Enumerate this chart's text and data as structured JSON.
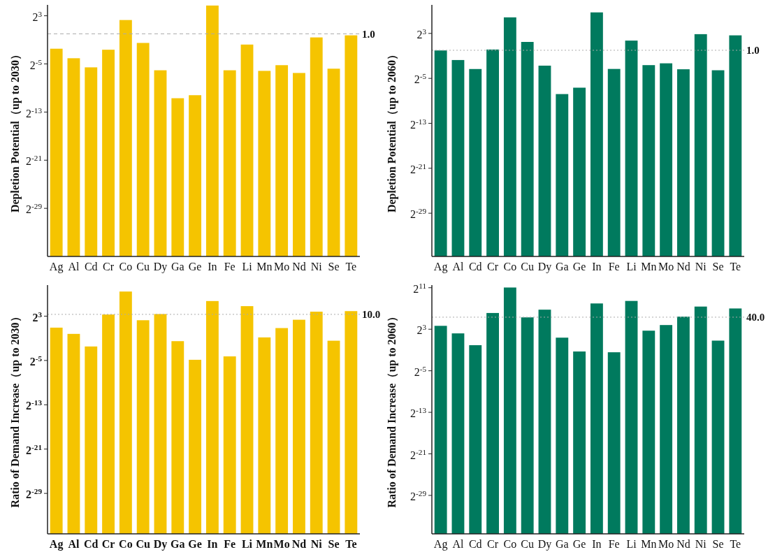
{
  "chart_data": [
    {
      "type": "bar",
      "ylabel": "Depletion Potential（up to 2030）",
      "log": true,
      "grid": false,
      "categories": [
        "Ag",
        "Al",
        "Cd",
        "Cr",
        "Co",
        "Cu",
        "Dy",
        "Ga",
        "Ge",
        "In",
        "Fe",
        "Li",
        "Mn",
        "Mo",
        "Nd",
        "Ni",
        "Se",
        "Te"
      ],
      "series": [
        {
          "color": "#f5c400",
          "values": [
            0.18,
            0.06,
            0.021,
            0.16,
            4.9,
            0.35,
            0.015,
            0.0006,
            0.00085,
            26,
            0.015,
            0.29,
            0.014,
            0.027,
            0.011,
            0.66,
            0.018,
            0.84
          ]
        }
      ],
      "ylim": [
        7.3e-12,
        28
      ],
      "yticks": [
        {
          "value": 1.862645149230957e-09,
          "label": "2$^{-29}$"
        },
        {
          "value": 4.76837158203125e-07,
          "label": "2$^{-21}$"
        },
        {
          "value": 0.0001220703125,
          "label": "2$^{-13}$"
        },
        {
          "value": 0.03125,
          "label": "2$^{-5}$"
        },
        {
          "value": 8,
          "label": "2$^{3}$"
        }
      ],
      "ref_lines": [
        {
          "axis": "y",
          "value": 1,
          "label": "1.0",
          "line_style": "dashed"
        }
      ]
    },
    {
      "type": "bar",
      "ylabel": "Depletion Potential（up to 2060）",
      "log": true,
      "grid": false,
      "categories": [
        "Ag",
        "Al",
        "Cd",
        "Cr",
        "Co",
        "Cu",
        "Dy",
        "Ga",
        "Ge",
        "In",
        "Fe",
        "Li",
        "Mn",
        "Mo",
        "Nd",
        "Ni",
        "Se",
        "Te"
      ],
      "series": [
        {
          "color": "#007a5e",
          "values": [
            0.98,
            0.3,
            0.099,
            1.1,
            58,
            2.8,
            0.15,
            0.0045,
            0.0099,
            107,
            0.1,
            3.3,
            0.16,
            0.2,
            0.096,
            7.3,
            0.085,
            6.3
          ]
        }
      ],
      "ylim": [
        9e-12,
        270
      ],
      "yticks": [
        {
          "value": 1.862645149230957e-09,
          "label": "2$^{-29}$"
        },
        {
          "value": 4.76837158203125e-07,
          "label": "2$^{-21}$"
        },
        {
          "value": 0.0001220703125,
          "label": "2$^{-13}$"
        },
        {
          "value": 0.03125,
          "label": "2$^{-5}$"
        },
        {
          "value": 8,
          "label": "2$^{3}$"
        }
      ],
      "ref_lines": [
        {
          "axis": "y",
          "value": 1,
          "label": "1.0",
          "line_style": "dotted"
        }
      ]
    },
    {
      "type": "bar",
      "ylabel": "Ratio of Demand Increase（up to 2030）",
      "log": true,
      "grid": false,
      "categories": [
        "Ag",
        "Al",
        "Cd",
        "Cr",
        "Co",
        "Cu",
        "Dy",
        "Ga",
        "Ge",
        "In",
        "Fe",
        "Li",
        "Mn",
        "Mo",
        "Nd",
        "Ni",
        "Se",
        "Te"
      ],
      "series": [
        {
          "color": "#f5c400",
          "values": [
            1.9,
            0.87,
            0.18,
            9.8,
            174,
            4.8,
            10.4,
            0.35,
            0.034,
            53,
            0.052,
            28,
            0.56,
            1.8,
            5.1,
            14,
            0.37,
            15
          ]
        }
      ],
      "ylim": [
        1.18e-11,
        390
      ],
      "yticks": [
        {
          "value": 1.862645149230957e-09,
          "label": "2$^{-29}$"
        },
        {
          "value": 4.76837158203125e-07,
          "label": "2$^{-21}$"
        },
        {
          "value": 0.0001220703125,
          "label": "2$^{-13}$"
        },
        {
          "value": 0.03125,
          "label": "2$^{-5}$"
        },
        {
          "value": 8,
          "label": "2$^{3}$"
        }
      ],
      "ref_lines": [
        {
          "axis": "y",
          "value": 10,
          "label": "10.0",
          "line_style": "dotted"
        }
      ]
    },
    {
      "type": "bar",
      "ylabel": "Ratio of Demand Increase（up to 2060）",
      "log": true,
      "grid": false,
      "categories": [
        "Ag",
        "Al",
        "Cd",
        "Cr",
        "Co",
        "Cu",
        "Dy",
        "Ga",
        "Ge",
        "In",
        "Fe",
        "Li",
        "Mn",
        "Mo",
        "Nd",
        "Ni",
        "Se",
        "Te"
      ],
      "series": [
        {
          "color": "#007a5e",
          "values": [
            12.6,
            4.6,
            0.95,
            70,
            2100,
            39,
            109,
            2.6,
            0.41,
            250,
            0.37,
            350,
            6.6,
            14,
            43,
            165,
            1.75,
            128
          ]
        }
      ],
      "ylim": [
        1.1e-11,
        2900
      ],
      "yticks": [
        {
          "value": 1.862645149230957e-09,
          "label": "2$^{-29}$"
        },
        {
          "value": 4.76837158203125e-07,
          "label": "2$^{-21}$"
        },
        {
          "value": 0.0001220703125,
          "label": "2$^{-13}$"
        },
        {
          "value": 0.03125,
          "label": "2$^{-5}$"
        },
        {
          "value": 8,
          "label": "2$^{3}$"
        },
        {
          "value": 2048,
          "label": "2$^{11}$"
        }
      ],
      "ref_lines": [
        {
          "axis": "y",
          "value": 40,
          "label": "40.0",
          "line_style": "dotted"
        }
      ]
    }
  ]
}
